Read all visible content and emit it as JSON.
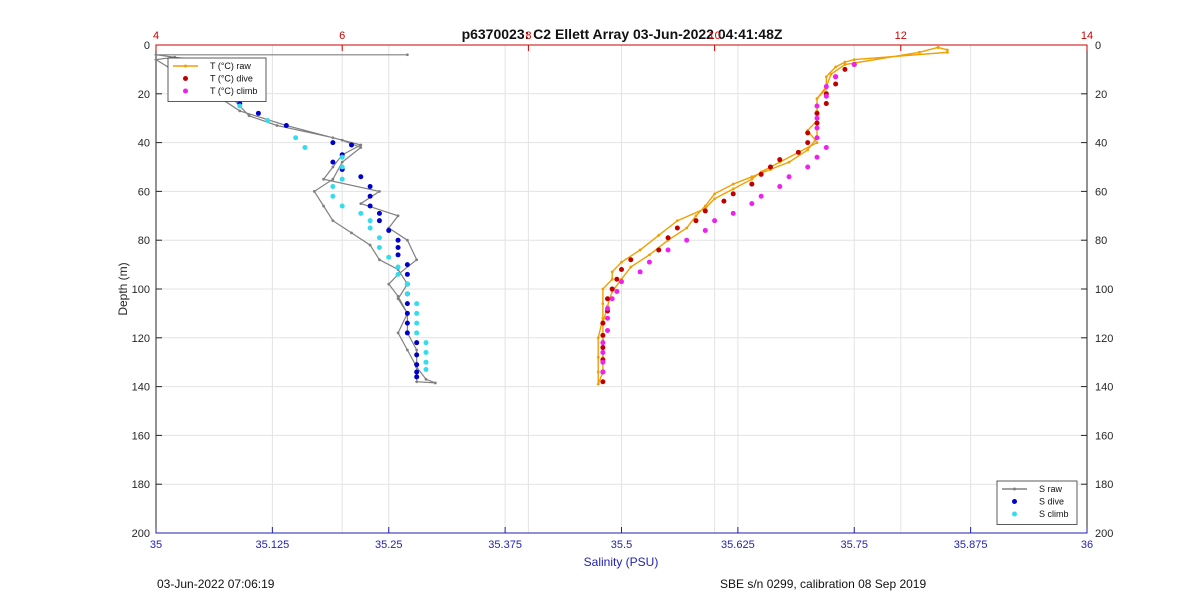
{
  "chart_data": {
    "type": "scatter",
    "title": "p6370023: C2 Ellett Array 03-Jun-2022 04:41:48Z",
    "footer_left": "03-Jun-2022 07:06:19",
    "footer_right": "SBE s/n 0299, calibration 08 Sep 2019",
    "y_axis": {
      "label": "Depth (m)",
      "range": [
        0,
        200
      ],
      "reversed": true,
      "ticks": [
        0,
        20,
        40,
        60,
        80,
        100,
        120,
        140,
        160,
        180,
        200
      ]
    },
    "x_bottom": {
      "label": "Salinity (PSU)",
      "range": [
        35,
        36
      ],
      "ticks": [
        35,
        35.125,
        35.25,
        35.375,
        35.5,
        35.625,
        35.75,
        35.875,
        36
      ],
      "tick_labels": [
        "35",
        "35.125",
        "35.25",
        "35.375",
        "35.5",
        "35.625",
        "35.75",
        "35.875",
        "36"
      ],
      "color": "#1f1fb4"
    },
    "x_top": {
      "label": "",
      "range": [
        4,
        14
      ],
      "ticks": [
        4,
        6,
        8,
        10,
        12,
        14
      ],
      "tick_labels": [
        "4",
        "6",
        "8",
        "10",
        "12",
        "14"
      ],
      "color": "#d00000"
    },
    "grid": true,
    "legend_temperature": {
      "placement": "top-left",
      "entries": [
        {
          "label": "T (°C) raw",
          "color": "#f0a000",
          "marker": "line"
        },
        {
          "label": "T (°C) dive",
          "color": "#c00000",
          "marker": "dot"
        },
        {
          "label": "T (°C) climb",
          "color": "#ee22ee",
          "marker": "dot"
        }
      ]
    },
    "legend_salinity": {
      "placement": "bottom-right",
      "entries": [
        {
          "label": "S raw",
          "color": "#808080",
          "marker": "line"
        },
        {
          "label": "S dive",
          "color": "#0000cc",
          "marker": "dot"
        },
        {
          "label": "S climb",
          "color": "#33ddee",
          "marker": "dot"
        }
      ]
    },
    "series": [
      {
        "name": "S raw",
        "axis": "salinity",
        "style": "line",
        "color": "#808080",
        "points": [
          [
            35.27,
            4
          ],
          [
            35.0,
            4
          ],
          [
            35.06,
            7
          ],
          [
            35.04,
            10
          ],
          [
            35.07,
            13
          ],
          [
            35.05,
            17
          ],
          [
            35.08,
            21
          ],
          [
            35.09,
            25
          ],
          [
            35.1,
            29
          ],
          [
            35.13,
            33
          ],
          [
            35.19,
            38
          ],
          [
            35.22,
            41
          ],
          [
            35.2,
            45
          ],
          [
            35.19,
            50
          ],
          [
            35.18,
            55
          ],
          [
            35.24,
            60
          ],
          [
            35.22,
            65
          ],
          [
            35.26,
            70
          ],
          [
            35.25,
            75
          ],
          [
            35.27,
            80
          ],
          [
            35.28,
            88
          ],
          [
            35.26,
            94
          ],
          [
            35.25,
            98
          ],
          [
            35.26,
            103
          ],
          [
            35.27,
            110
          ],
          [
            35.27,
            118
          ],
          [
            35.28,
            125
          ],
          [
            35.28,
            132
          ],
          [
            35.28,
            138
          ],
          [
            35.3,
            138.5
          ],
          [
            35.29,
            137
          ],
          [
            35.28,
            132
          ],
          [
            35.27,
            125
          ],
          [
            35.26,
            118
          ],
          [
            35.27,
            110
          ],
          [
            35.26,
            104
          ],
          [
            35.27,
            98
          ],
          [
            35.26,
            92
          ],
          [
            35.24,
            88
          ],
          [
            35.23,
            82
          ],
          [
            35.21,
            77
          ],
          [
            35.19,
            72
          ],
          [
            35.18,
            66
          ],
          [
            35.17,
            60
          ],
          [
            35.19,
            55
          ],
          [
            35.2,
            48
          ],
          [
            35.22,
            42
          ],
          [
            35.2,
            39
          ],
          [
            35.14,
            33
          ],
          [
            35.09,
            27
          ],
          [
            35.07,
            22
          ],
          [
            35.05,
            18
          ],
          [
            35.03,
            13
          ],
          [
            35.0,
            6
          ],
          [
            35.02,
            5
          ]
        ]
      },
      {
        "name": "S dive",
        "axis": "salinity",
        "style": "dot",
        "color": "#0000cc",
        "points": [
          [
            35.04,
            8
          ],
          [
            35.06,
            11
          ],
          [
            35.07,
            13
          ],
          [
            35.07,
            15
          ],
          [
            35.05,
            17
          ],
          [
            35.08,
            20
          ],
          [
            35.09,
            24
          ],
          [
            35.11,
            28
          ],
          [
            35.14,
            33
          ],
          [
            35.19,
            40
          ],
          [
            35.21,
            41
          ],
          [
            35.2,
            45
          ],
          [
            35.19,
            48
          ],
          [
            35.2,
            51
          ],
          [
            35.22,
            54
          ],
          [
            35.23,
            58
          ],
          [
            35.23,
            62
          ],
          [
            35.23,
            66
          ],
          [
            35.24,
            69
          ],
          [
            35.24,
            72
          ],
          [
            35.25,
            76
          ],
          [
            35.26,
            80
          ],
          [
            35.26,
            83
          ],
          [
            35.26,
            86
          ],
          [
            35.27,
            90
          ],
          [
            35.27,
            94
          ],
          [
            35.27,
            98
          ],
          [
            35.27,
            102
          ],
          [
            35.27,
            106
          ],
          [
            35.27,
            110
          ],
          [
            35.27,
            114
          ],
          [
            35.27,
            118
          ],
          [
            35.28,
            122
          ],
          [
            35.28,
            127
          ],
          [
            35.28,
            131
          ],
          [
            35.28,
            134
          ],
          [
            35.28,
            136
          ]
        ]
      },
      {
        "name": "S climb",
        "axis": "salinity",
        "style": "dot",
        "color": "#33ddee",
        "points": [
          [
            35.06,
            7
          ],
          [
            35.07,
            10
          ],
          [
            35.07,
            13
          ],
          [
            35.07,
            17
          ],
          [
            35.08,
            21
          ],
          [
            35.09,
            25
          ],
          [
            35.12,
            31
          ],
          [
            35.15,
            38
          ],
          [
            35.16,
            42
          ],
          [
            35.2,
            46
          ],
          [
            35.2,
            50
          ],
          [
            35.2,
            55
          ],
          [
            35.19,
            58
          ],
          [
            35.19,
            62
          ],
          [
            35.2,
            66
          ],
          [
            35.22,
            69
          ],
          [
            35.23,
            72
          ],
          [
            35.23,
            75
          ],
          [
            35.24,
            79
          ],
          [
            35.24,
            83
          ],
          [
            35.25,
            87
          ],
          [
            35.26,
            91
          ],
          [
            35.26,
            94
          ],
          [
            35.27,
            98
          ],
          [
            35.27,
            102
          ],
          [
            35.28,
            106
          ],
          [
            35.28,
            110
          ],
          [
            35.28,
            114
          ],
          [
            35.28,
            118
          ],
          [
            35.29,
            122
          ],
          [
            35.29,
            126
          ],
          [
            35.29,
            130
          ],
          [
            35.29,
            133
          ]
        ]
      },
      {
        "name": "T (°C) raw",
        "axis": "temperature",
        "style": "line",
        "color": "#f0a000",
        "points": [
          [
            12.4,
            1
          ],
          [
            12.5,
            2
          ],
          [
            12.5,
            3
          ],
          [
            11.5,
            6
          ],
          [
            11.4,
            7
          ],
          [
            11.3,
            9
          ],
          [
            11.2,
            13
          ],
          [
            11.2,
            18
          ],
          [
            11.1,
            22
          ],
          [
            11.1,
            27
          ],
          [
            11.1,
            31
          ],
          [
            11.0,
            35
          ],
          [
            11.1,
            40
          ],
          [
            10.9,
            44
          ],
          [
            10.7,
            48
          ],
          [
            10.5,
            52
          ],
          [
            10.4,
            55
          ],
          [
            10.2,
            59
          ],
          [
            10.0,
            63
          ],
          [
            9.9,
            67
          ],
          [
            9.6,
            72
          ],
          [
            9.4,
            78
          ],
          [
            9.2,
            84
          ],
          [
            9.0,
            89
          ],
          [
            8.9,
            93
          ],
          [
            8.9,
            96
          ],
          [
            8.8,
            100
          ],
          [
            8.8,
            106
          ],
          [
            8.8,
            112
          ],
          [
            8.75,
            120
          ],
          [
            8.75,
            128
          ],
          [
            8.75,
            134
          ],
          [
            8.75,
            139
          ],
          [
            8.8,
            134
          ],
          [
            8.8,
            128
          ],
          [
            8.8,
            121
          ],
          [
            8.8,
            114
          ],
          [
            8.85,
            107
          ],
          [
            8.9,
            101
          ],
          [
            9.0,
            96
          ],
          [
            9.1,
            91
          ],
          [
            9.3,
            86
          ],
          [
            9.5,
            80
          ],
          [
            9.7,
            75
          ],
          [
            9.8,
            70
          ],
          [
            9.9,
            66
          ],
          [
            10.0,
            61
          ],
          [
            10.2,
            57
          ],
          [
            10.4,
            54
          ],
          [
            10.6,
            51
          ],
          [
            10.8,
            48
          ],
          [
            11.0,
            43
          ],
          [
            11.1,
            38
          ],
          [
            11.1,
            32
          ],
          [
            11.1,
            27
          ],
          [
            11.1,
            22
          ],
          [
            11.2,
            17
          ],
          [
            11.25,
            12
          ],
          [
            11.4,
            8
          ],
          [
            12.2,
            3
          ],
          [
            12.4,
            1
          ]
        ]
      },
      {
        "name": "T (°C) dive",
        "axis": "temperature",
        "style": "dot",
        "color": "#c00000",
        "points": [
          [
            11.5,
            8
          ],
          [
            11.4,
            10
          ],
          [
            11.3,
            13
          ],
          [
            11.3,
            16
          ],
          [
            11.2,
            20
          ],
          [
            11.2,
            24
          ],
          [
            11.1,
            28
          ],
          [
            11.1,
            32
          ],
          [
            11.0,
            36
          ],
          [
            11.0,
            40
          ],
          [
            10.9,
            44
          ],
          [
            10.7,
            47
          ],
          [
            10.6,
            50
          ],
          [
            10.5,
            53
          ],
          [
            10.4,
            57
          ],
          [
            10.2,
            61
          ],
          [
            10.1,
            64
          ],
          [
            9.9,
            68
          ],
          [
            9.8,
            72
          ],
          [
            9.6,
            75
          ],
          [
            9.5,
            79
          ],
          [
            9.4,
            84
          ],
          [
            9.1,
            88
          ],
          [
            9.0,
            92
          ],
          [
            8.95,
            96
          ],
          [
            8.9,
            100
          ],
          [
            8.85,
            104
          ],
          [
            8.85,
            109
          ],
          [
            8.8,
            114
          ],
          [
            8.8,
            119
          ],
          [
            8.8,
            124
          ],
          [
            8.8,
            129
          ],
          [
            8.8,
            134
          ],
          [
            8.8,
            138
          ]
        ]
      },
      {
        "name": "T (°C) climb",
        "axis": "temperature",
        "style": "dot",
        "color": "#ee22ee",
        "points": [
          [
            11.5,
            8
          ],
          [
            11.3,
            13
          ],
          [
            11.2,
            17
          ],
          [
            11.2,
            21
          ],
          [
            11.1,
            25
          ],
          [
            11.1,
            30
          ],
          [
            11.1,
            34
          ],
          [
            11.1,
            38
          ],
          [
            11.2,
            42
          ],
          [
            11.1,
            46
          ],
          [
            11.0,
            50
          ],
          [
            10.8,
            54
          ],
          [
            10.7,
            58
          ],
          [
            10.5,
            62
          ],
          [
            10.4,
            65
          ],
          [
            10.2,
            69
          ],
          [
            10.0,
            72
          ],
          [
            9.9,
            76
          ],
          [
            9.7,
            80
          ],
          [
            9.5,
            84
          ],
          [
            9.3,
            89
          ],
          [
            9.2,
            93
          ],
          [
            9.0,
            97
          ],
          [
            8.95,
            101
          ],
          [
            8.9,
            104
          ],
          [
            8.85,
            108
          ],
          [
            8.85,
            112
          ],
          [
            8.85,
            117
          ],
          [
            8.8,
            122
          ],
          [
            8.8,
            126
          ],
          [
            8.8,
            130
          ],
          [
            8.8,
            134
          ]
        ]
      }
    ]
  }
}
